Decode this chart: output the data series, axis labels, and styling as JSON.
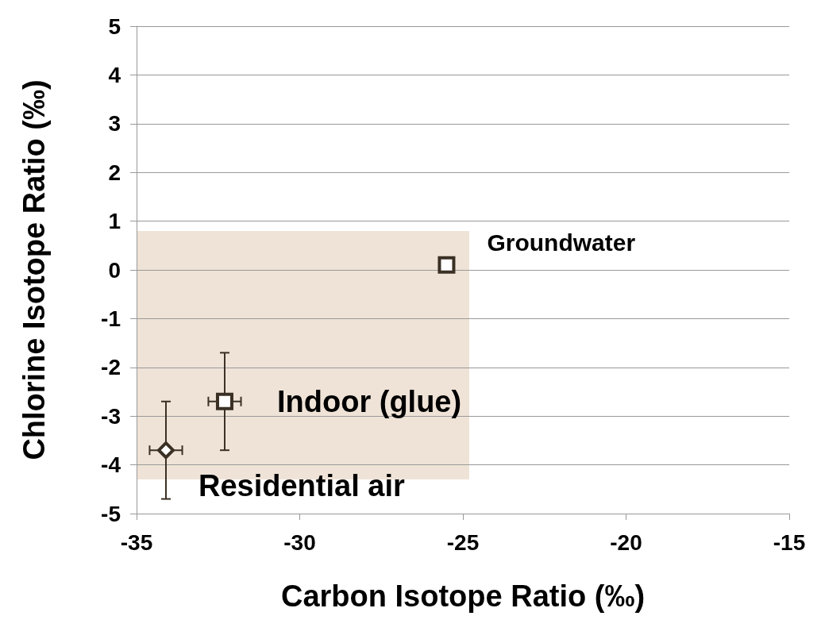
{
  "chart_data": {
    "type": "scatter",
    "xlabel": "Carbon Isotope Ratio (‰)",
    "ylabel": "Chlorine Isotope Ratio (‰)",
    "xlim": [
      -35,
      -15
    ],
    "xticks": [
      -35,
      -30,
      -25,
      -20,
      -15
    ],
    "ylim": [
      -5,
      5
    ],
    "yticks": [
      -5,
      -4,
      -3,
      -2,
      -1,
      0,
      1,
      2,
      3,
      4,
      5
    ],
    "grid": "y",
    "series": [
      {
        "name": "Groundwater",
        "color": "#3b3024",
        "marker": "square",
        "x": [
          -25.5
        ],
        "values": [
          0.1
        ]
      },
      {
        "name": "Indoor (glue)",
        "color": "#3b3024",
        "marker": "square",
        "x": [
          -32.3
        ],
        "values": [
          -2.7
        ],
        "errors": [
          1
        ],
        "xerrors": [
          0.5
        ]
      },
      {
        "name": "Residential air",
        "color": "#3b3024",
        "marker": "diamond",
        "x": [
          -34.1
        ],
        "values": [
          -3.7
        ],
        "errors": [
          1
        ],
        "xerrors": [
          0.5
        ]
      }
    ]
  }
}
